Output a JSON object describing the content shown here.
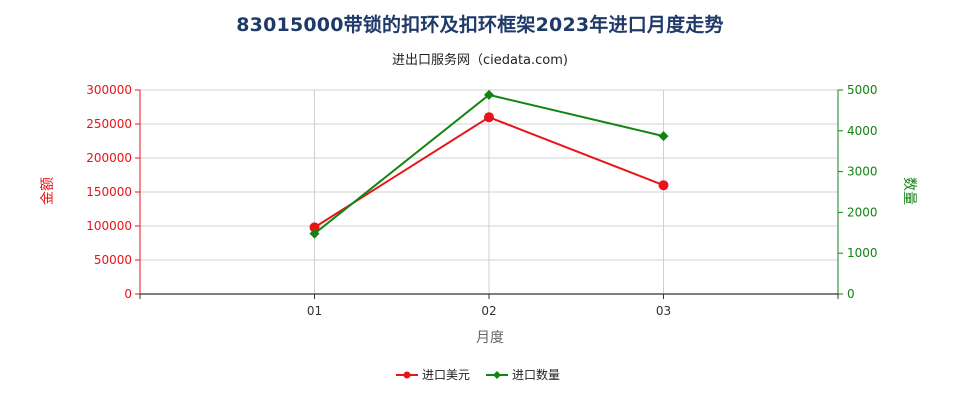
{
  "chart_data": {
    "type": "line",
    "title": "83015000带锁的扣环及扣环框架2023年进口月度走势",
    "subtitle": "进出口服务网（ciedata.com)",
    "xlabel": "月度",
    "ylabel_left": "金额",
    "ylabel_right": "数量",
    "categories": [
      "01",
      "02",
      "03"
    ],
    "ylim_left": [
      0,
      300000
    ],
    "ylim_right": [
      0,
      5000
    ],
    "yticks_left": [
      "0",
      "50000",
      "100000",
      "150000",
      "200000",
      "250000",
      "300000"
    ],
    "yticks_right": [
      "0",
      "1000",
      "2000",
      "3000",
      "4000",
      "5000"
    ],
    "grid": true,
    "legend_position": "bottom",
    "series": [
      {
        "name": "进口美元",
        "axis": "left",
        "color": "#e8141a",
        "marker": "circle",
        "values": [
          98000,
          260000,
          160000
        ]
      },
      {
        "name": "进口数量",
        "axis": "right",
        "color": "#128412",
        "marker": "diamond",
        "values": [
          1480,
          4880,
          3870
        ]
      }
    ],
    "colors": {
      "left_axis": "#e8141a",
      "right_axis": "#128412",
      "grid": "#d0d0d0",
      "title": "#1f3a68"
    }
  }
}
